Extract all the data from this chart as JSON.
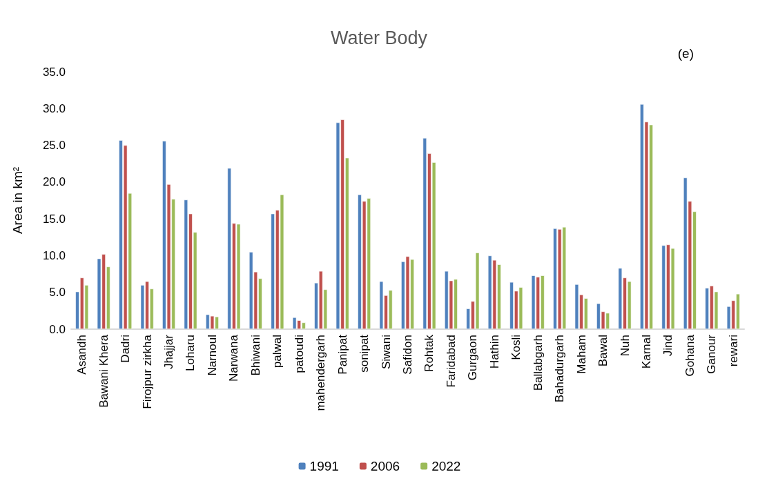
{
  "chart_data": {
    "type": "bar",
    "title": "Water Body",
    "ylabel": "Area in km²",
    "annotations": [
      "(e)"
    ],
    "categories": [
      "Asandh",
      "Bawani Khera",
      "Dadri",
      "Firojpur zirkha",
      "Jhajjar",
      "Loharu",
      "Narnoul",
      "Narwana",
      "Bhiwani",
      "palwal",
      "patoudi",
      "mahendergarh",
      "Panipat",
      "sonipat",
      "Siwani",
      "Safidon",
      "Rohtak",
      "Faridabad",
      "Gurgaon",
      "Hathin",
      "Kosli",
      "Ballabgarh",
      "Bahadurgarh",
      "Maham",
      "Bawal",
      "Nuh",
      "Karnal",
      "Jind",
      "Gohana",
      "Ganour",
      "rewari"
    ],
    "series": [
      {
        "name": "1991",
        "color": "#4f81bd",
        "values": [
          5.1,
          9.6,
          25.7,
          6.0,
          25.6,
          17.6,
          2.0,
          21.9,
          10.5,
          15.7,
          1.6,
          6.3,
          28.1,
          18.3,
          6.5,
          9.2,
          26.0,
          7.9,
          2.8,
          10.0,
          6.4,
          7.3,
          13.7,
          6.1,
          3.5,
          8.3,
          30.6,
          11.4,
          20.6,
          5.6,
          3.1
        ]
      },
      {
        "name": "2006",
        "color": "#c0504d",
        "values": [
          7.0,
          10.2,
          25.0,
          6.5,
          19.7,
          15.7,
          1.8,
          14.4,
          7.8,
          16.2,
          1.2,
          7.9,
          28.5,
          17.4,
          4.6,
          9.9,
          23.9,
          6.6,
          3.8,
          9.4,
          5.2,
          7.1,
          13.6,
          4.7,
          2.4,
          7.0,
          28.2,
          11.5,
          17.4,
          5.9,
          3.9
        ]
      },
      {
        "name": "2022",
        "color": "#9bbb59",
        "values": [
          6.0,
          8.5,
          18.5,
          5.5,
          17.7,
          13.2,
          1.7,
          14.3,
          6.9,
          18.3,
          0.9,
          5.4,
          23.3,
          17.8,
          5.3,
          9.5,
          22.7,
          6.8,
          10.4,
          8.8,
          5.7,
          7.3,
          13.9,
          4.2,
          2.2,
          6.5,
          27.8,
          11.0,
          16.0,
          5.1,
          4.8
        ]
      }
    ],
    "ylim": [
      0,
      35
    ],
    "yticks": [
      {
        "value": 0,
        "label": "0.0"
      },
      {
        "value": 5,
        "label": "5.0"
      },
      {
        "value": 10,
        "label": "10.0"
      },
      {
        "value": 15,
        "label": "15.0"
      },
      {
        "value": 20,
        "label": "20.0"
      },
      {
        "value": 25,
        "label": "25.0"
      },
      {
        "value": 30,
        "label": "30.0"
      },
      {
        "value": 35,
        "label": "35.0"
      }
    ],
    "legend": "bottom"
  }
}
